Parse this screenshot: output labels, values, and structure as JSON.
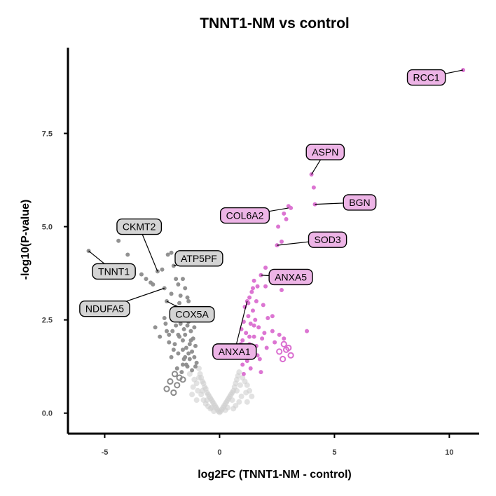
{
  "chart_data": {
    "type": "scatter",
    "title": "TNNT1-NM vs control",
    "xlabel": "log2FC (TNNT1-NM - control)",
    "ylabel": "-log10(P-value)",
    "xlim": [
      -6.6,
      11.3
    ],
    "ylim": [
      -0.55,
      9.8
    ],
    "x_ticks": [
      -5,
      0,
      5,
      10
    ],
    "x_tick_labels": [
      "-5",
      "0",
      "5",
      "10"
    ],
    "y_ticks": [
      0,
      2.5,
      5,
      7.5
    ],
    "y_tick_labels": [
      "0.0",
      "2.5",
      "5.0",
      "7.5"
    ],
    "grid": false,
    "legend": "none",
    "colors": {
      "up": "#da6ed0",
      "down": "#8c8c8c",
      "ns": "#cfcfcf",
      "up_label_fill": "#edb4e6",
      "down_label_fill": "#d4d4d4",
      "axis": "#000000"
    },
    "series": [
      {
        "group": "down",
        "marker": "filled",
        "points": [
          [
            -5.7,
            4.35
          ],
          [
            -4.4,
            4.62
          ],
          [
            -4.0,
            4.25
          ],
          [
            -3.4,
            3.72
          ],
          [
            -3.2,
            3.6
          ],
          [
            -3.0,
            3.5
          ],
          [
            -2.9,
            3.45
          ],
          [
            -2.7,
            3.8
          ],
          [
            -2.5,
            3.85
          ],
          [
            -2.4,
            3.35
          ],
          [
            -2.3,
            3.0
          ],
          [
            -2.25,
            4.25
          ],
          [
            -2.1,
            4.3
          ],
          [
            -2.1,
            3.2
          ],
          [
            -2.0,
            3.95
          ],
          [
            -1.9,
            3.6
          ],
          [
            -1.8,
            3.45
          ],
          [
            -1.7,
            3.15
          ],
          [
            -1.75,
            2.95
          ],
          [
            -1.6,
            3.6
          ],
          [
            -1.5,
            3.35
          ],
          [
            -1.4,
            3.1
          ],
          [
            -1.35,
            3.0
          ],
          [
            -2.4,
            2.55
          ],
          [
            -2.3,
            2.2
          ],
          [
            -2.2,
            2.1
          ],
          [
            -2.0,
            2.5
          ],
          [
            -1.9,
            2.35
          ],
          [
            -1.8,
            2.1
          ],
          [
            -1.7,
            2.75
          ],
          [
            -1.6,
            1.95
          ],
          [
            -1.55,
            2.25
          ],
          [
            -1.45,
            2.65
          ],
          [
            -1.35,
            2.45
          ],
          [
            -1.3,
            1.85
          ],
          [
            -1.25,
            2.2
          ],
          [
            -1.2,
            1.65
          ],
          [
            -1.15,
            2.0
          ],
          [
            -1.1,
            1.5
          ],
          [
            -1.05,
            1.8
          ],
          [
            -1.0,
            1.35
          ],
          [
            -2.8,
            2.3
          ],
          [
            -2.0,
            1.7
          ],
          [
            -1.8,
            1.6
          ],
          [
            -1.6,
            1.3
          ],
          [
            -1.5,
            1.5
          ],
          [
            -1.4,
            1.25
          ],
          [
            -2.2,
            1.9
          ],
          [
            -1.9,
            2.85
          ],
          [
            -1.2,
            2.55
          ],
          [
            -1.7,
            2.4
          ],
          [
            -1.45,
            1.75
          ],
          [
            -1.3,
            1.45
          ],
          [
            -2.1,
            1.5
          ],
          [
            -1.85,
            1.2
          ],
          [
            -1.65,
            1.1
          ],
          [
            -1.55,
            1.45
          ],
          [
            -1.95,
            1.85
          ],
          [
            -1.25,
            1.95
          ],
          [
            -1.1,
            2.3
          ],
          [
            -2.35,
            2.4
          ],
          [
            -2.6,
            2.05
          ],
          [
            -1.75,
            2.05
          ],
          [
            -1.5,
            2.1
          ],
          [
            -1.4,
            2.35
          ],
          [
            -1.3,
            2.7
          ],
          [
            -1.15,
            2.8
          ],
          [
            -1.35,
            1.6
          ],
          [
            -1.6,
            1.7
          ],
          [
            -1.45,
            1.3
          ],
          [
            -1.2,
            1.15
          ],
          [
            -1.05,
            1.25
          ],
          [
            -2.05,
            2.2
          ],
          [
            -1.82,
            2.5
          ],
          [
            -1.65,
            2.6
          ]
        ]
      },
      {
        "group": "down",
        "marker": "open",
        "points": [
          [
            -1.95,
            1.05
          ],
          [
            -1.75,
            0.95
          ],
          [
            -2.15,
            0.85
          ],
          [
            -1.85,
            0.75
          ],
          [
            -2.3,
            0.65
          ],
          [
            -1.6,
            0.9
          ],
          [
            -2.0,
            0.55
          ]
        ]
      },
      {
        "group": "up",
        "marker": "filled",
        "points": [
          [
            10.6,
            9.2
          ],
          [
            4.0,
            6.4
          ],
          [
            4.1,
            6.05
          ],
          [
            4.15,
            5.6
          ],
          [
            3.0,
            5.55
          ],
          [
            3.1,
            5.5
          ],
          [
            2.8,
            5.35
          ],
          [
            2.9,
            5.2
          ],
          [
            2.55,
            5.0
          ],
          [
            2.7,
            4.6
          ],
          [
            2.5,
            4.5
          ],
          [
            2.0,
            3.9
          ],
          [
            1.8,
            3.7
          ],
          [
            1.5,
            3.55
          ],
          [
            1.65,
            3.4
          ],
          [
            2.0,
            3.4
          ],
          [
            2.7,
            3.3
          ],
          [
            1.4,
            3.25
          ],
          [
            1.3,
            3.1
          ],
          [
            1.2,
            3.0
          ],
          [
            1.6,
            3.0
          ],
          [
            1.9,
            2.9
          ],
          [
            1.1,
            2.85
          ],
          [
            1.45,
            2.75
          ],
          [
            1.25,
            2.6
          ],
          [
            2.1,
            2.55
          ],
          [
            1.05,
            2.45
          ],
          [
            1.35,
            2.4
          ],
          [
            1.7,
            2.3
          ],
          [
            2.3,
            2.2
          ],
          [
            3.8,
            2.2
          ],
          [
            0.95,
            2.25
          ],
          [
            1.15,
            2.15
          ],
          [
            1.5,
            2.05
          ],
          [
            1.85,
            2.0
          ],
          [
            2.6,
            2.1
          ],
          [
            1.0,
            1.95
          ],
          [
            1.3,
            1.85
          ],
          [
            1.6,
            1.8
          ],
          [
            2.05,
            1.75
          ],
          [
            1.1,
            1.65
          ],
          [
            1.4,
            1.55
          ],
          [
            0.9,
            1.55
          ],
          [
            1.2,
            1.4
          ],
          [
            1.0,
            1.3
          ],
          [
            1.35,
            1.2
          ],
          [
            1.75,
            1.45
          ],
          [
            2.4,
            1.9
          ],
          [
            1.55,
            2.5
          ],
          [
            1.25,
            2.95
          ],
          [
            1.45,
            3.35
          ],
          [
            2.3,
            2.6
          ],
          [
            1.95,
            2.15
          ],
          [
            1.65,
            1.55
          ],
          [
            1.15,
            1.75
          ],
          [
            0.92,
            1.85
          ],
          [
            1.5,
            2.35
          ],
          [
            2.8,
            2.0
          ],
          [
            1.8,
            1.1
          ],
          [
            1.05,
            1.05
          ],
          [
            1.3,
            2.05
          ]
        ]
      },
      {
        "group": "up",
        "marker": "open",
        "points": [
          [
            2.8,
            1.85
          ],
          [
            3.0,
            1.75
          ],
          [
            2.6,
            1.65
          ],
          [
            2.75,
            1.45
          ],
          [
            3.1,
            1.55
          ],
          [
            2.9,
            1.7
          ]
        ]
      },
      {
        "group": "ns",
        "marker": "filled",
        "points": [
          [
            -0.9,
            1.2
          ],
          [
            -0.85,
            1.05
          ],
          [
            -0.8,
            0.95
          ],
          [
            -0.75,
            0.85
          ],
          [
            -0.7,
            0.8
          ],
          [
            -0.65,
            0.7
          ],
          [
            -0.6,
            0.65
          ],
          [
            -0.55,
            0.55
          ],
          [
            -0.5,
            0.5
          ],
          [
            -0.45,
            0.45
          ],
          [
            -0.4,
            0.4
          ],
          [
            -0.35,
            0.35
          ],
          [
            -0.3,
            0.3
          ],
          [
            -0.25,
            0.25
          ],
          [
            -0.2,
            0.2
          ],
          [
            -0.15,
            0.15
          ],
          [
            -0.1,
            0.1
          ],
          [
            -0.05,
            0.05
          ],
          [
            0.0,
            0.02
          ],
          [
            0.05,
            0.05
          ],
          [
            0.1,
            0.1
          ],
          [
            0.15,
            0.15
          ],
          [
            0.2,
            0.2
          ],
          [
            0.25,
            0.25
          ],
          [
            0.3,
            0.3
          ],
          [
            0.35,
            0.35
          ],
          [
            0.4,
            0.4
          ],
          [
            0.45,
            0.45
          ],
          [
            0.5,
            0.5
          ],
          [
            0.55,
            0.55
          ],
          [
            0.6,
            0.6
          ],
          [
            0.65,
            0.7
          ],
          [
            0.7,
            0.8
          ],
          [
            0.75,
            0.9
          ],
          [
            0.8,
            1.0
          ],
          [
            0.85,
            1.1
          ],
          [
            -1.3,
            1.05
          ],
          [
            -1.1,
            0.9
          ],
          [
            -1.0,
            0.8
          ],
          [
            -0.95,
            0.6
          ],
          [
            -0.8,
            0.5
          ],
          [
            -0.7,
            0.35
          ],
          [
            -0.6,
            0.25
          ],
          [
            -0.5,
            0.18
          ],
          [
            -0.4,
            0.12
          ],
          [
            1.0,
            0.95
          ],
          [
            1.1,
            0.85
          ],
          [
            1.2,
            0.75
          ],
          [
            1.3,
            0.6
          ],
          [
            0.95,
            0.45
          ],
          [
            0.85,
            0.3
          ],
          [
            0.7,
            0.2
          ],
          [
            0.6,
            0.12
          ],
          [
            -1.2,
            0.5
          ],
          [
            -1.0,
            0.35
          ],
          [
            1.4,
            0.45
          ],
          [
            1.2,
            0.3
          ],
          [
            -0.9,
            0.95
          ],
          [
            0.9,
            0.75
          ],
          [
            -0.35,
            0.15
          ],
          [
            0.35,
            0.15
          ],
          [
            -0.25,
            0.05
          ],
          [
            0.25,
            0.08
          ],
          [
            -1.15,
            0.7
          ],
          [
            1.15,
            0.55
          ],
          [
            -0.75,
            0.6
          ],
          [
            0.75,
            0.6
          ],
          [
            -0.55,
            0.35
          ],
          [
            0.55,
            0.35
          ]
        ]
      }
    ],
    "annotations": [
      {
        "label": "RCC1",
        "group": "up",
        "x": 10.6,
        "y": 9.2,
        "lx": 9.0,
        "ly": 9.0
      },
      {
        "label": "ASPN",
        "group": "up",
        "x": 4.0,
        "y": 6.4,
        "lx": 4.6,
        "ly": 7.0
      },
      {
        "label": "BGN",
        "group": "up",
        "x": 4.15,
        "y": 5.6,
        "lx": 6.1,
        "ly": 5.65
      },
      {
        "label": "COL6A2",
        "group": "up",
        "x": 3.0,
        "y": 5.5,
        "lx": 1.1,
        "ly": 5.3
      },
      {
        "label": "SOD3",
        "group": "up",
        "x": 2.5,
        "y": 4.5,
        "lx": 4.7,
        "ly": 4.65
      },
      {
        "label": "ANXA5",
        "group": "up",
        "x": 1.8,
        "y": 3.7,
        "lx": 3.1,
        "ly": 3.65
      },
      {
        "label": "ANXA1",
        "group": "up",
        "x": 1.2,
        "y": 3.0,
        "lx": 0.65,
        "ly": 1.65
      },
      {
        "label": "CKMT2",
        "group": "down",
        "x": -2.7,
        "y": 3.8,
        "lx": -3.5,
        "ly": 5.0
      },
      {
        "label": "ATP5PF",
        "group": "down",
        "x": -2.0,
        "y": 3.95,
        "lx": -0.9,
        "ly": 4.15
      },
      {
        "label": "TNNT1",
        "group": "down",
        "x": -5.7,
        "y": 4.35,
        "lx": -4.6,
        "ly": 3.8
      },
      {
        "label": "NDUFA5",
        "group": "down",
        "x": -2.4,
        "y": 3.35,
        "lx": -5.0,
        "ly": 2.8
      },
      {
        "label": "COX5A",
        "group": "down",
        "x": -2.3,
        "y": 3.0,
        "lx": -1.2,
        "ly": 2.65
      }
    ]
  }
}
